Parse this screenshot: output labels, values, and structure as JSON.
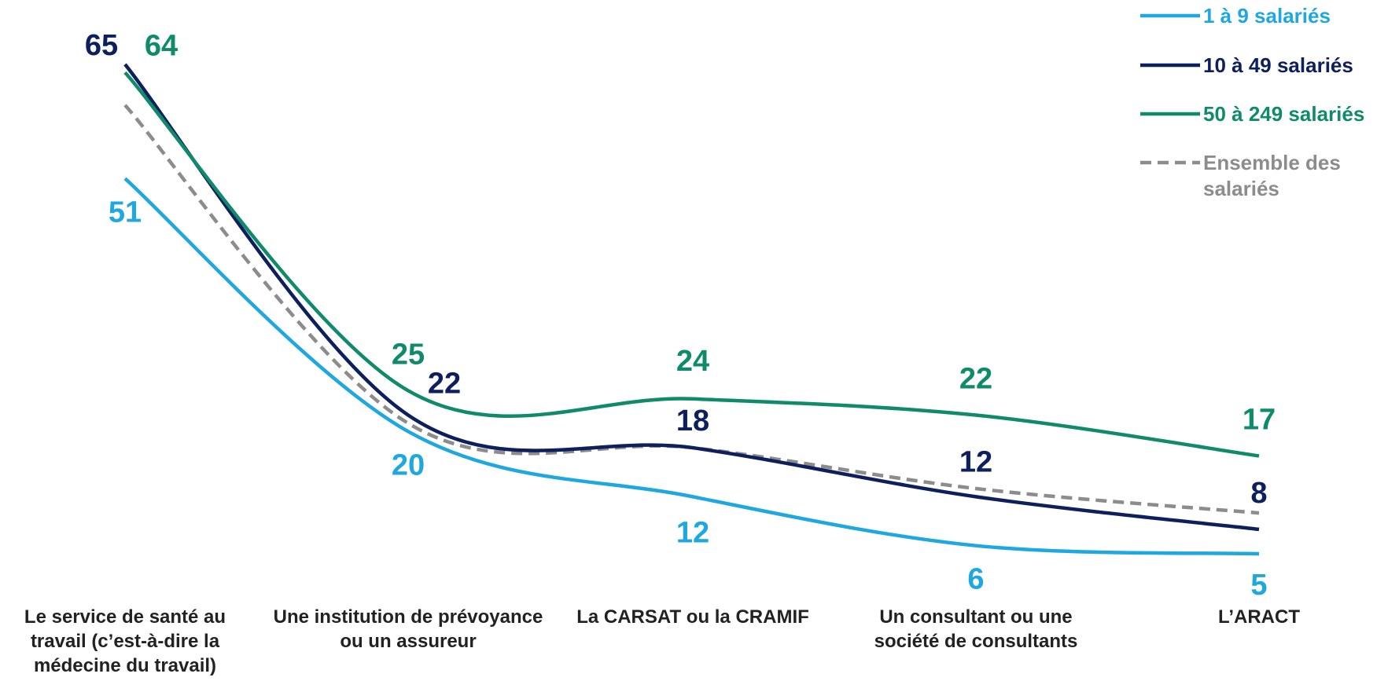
{
  "chart_data": {
    "type": "line",
    "categories": [
      "Le service de santé au travail (c’est-à-dire la médecine du travail)",
      "Une institution de prévoyance ou un assureur",
      "La CARSAT ou la CRAMIF",
      "Un consultant ou une société de consultants",
      "L’ARACT"
    ],
    "series": [
      {
        "name": "1 à 9 salariés",
        "color": "#1ea7e1",
        "values": [
          51,
          20,
          12,
          6,
          5
        ]
      },
      {
        "name": "10 à 49 salariés",
        "color": "#0d1f5c",
        "values": [
          65,
          22,
          18,
          12,
          8
        ]
      },
      {
        "name": "50 à 249 salariés",
        "color": "#0f8a6a",
        "values": [
          64,
          25,
          24,
          22,
          17
        ]
      },
      {
        "name": "Ensemble des salariés",
        "color": "#8c8c8c",
        "dashed": true,
        "values": [
          60,
          21,
          18,
          13,
          10
        ]
      }
    ],
    "ylim": [
      0,
      70
    ],
    "grid": false
  }
}
